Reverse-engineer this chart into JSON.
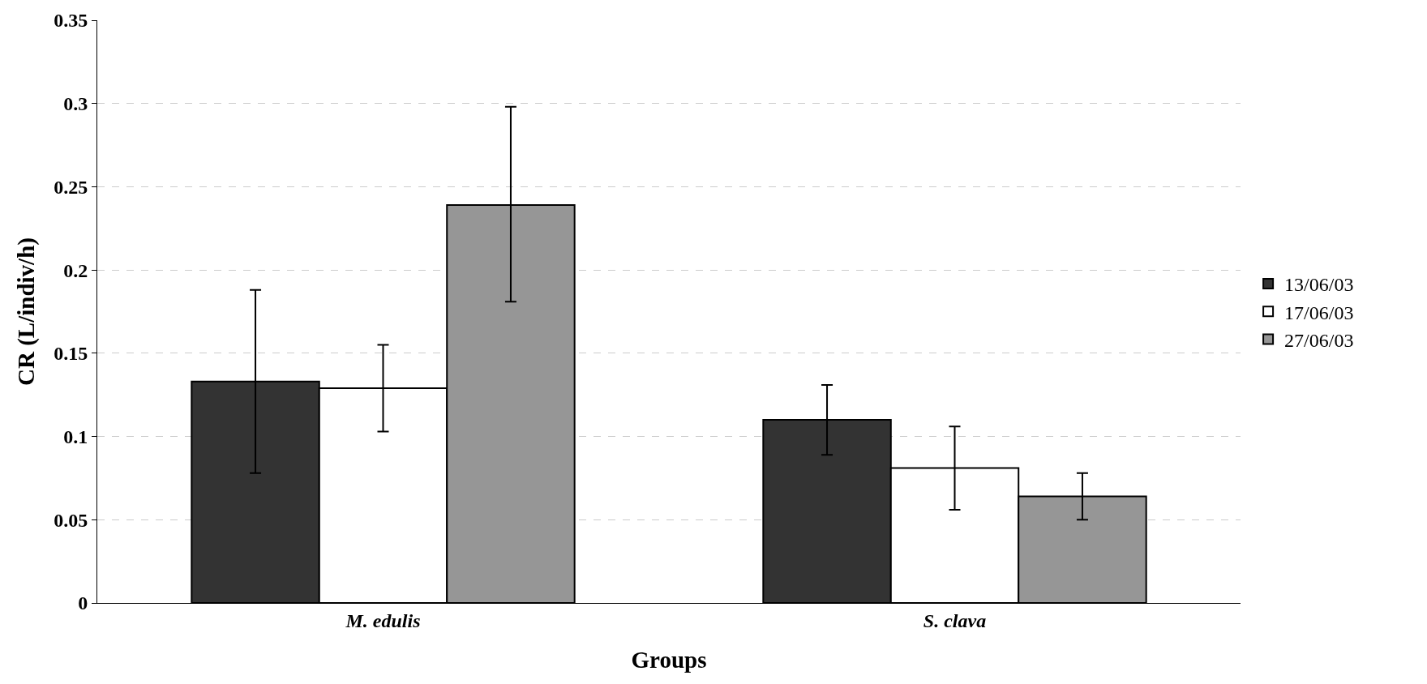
{
  "chart_data": {
    "type": "bar",
    "xlabel": "Groups",
    "ylabel": "CR (L/indiv/h)",
    "categories": [
      "M. edulis",
      "S. clava"
    ],
    "series": [
      {
        "name": "13/06/03",
        "color": "#333333",
        "values": [
          0.133,
          0.11
        ],
        "errors": [
          [
            0.078,
            0.188
          ],
          [
            0.089,
            0.131
          ]
        ]
      },
      {
        "name": "17/06/03",
        "color": "#ffffff",
        "values": [
          0.129,
          0.081
        ],
        "errors": [
          [
            0.103,
            0.155
          ],
          [
            0.056,
            0.106
          ]
        ]
      },
      {
        "name": "27/06/03",
        "color": "#969696",
        "values": [
          0.239,
          0.064
        ],
        "errors": [
          [
            0.181,
            0.298
          ],
          [
            0.05,
            0.078
          ]
        ]
      }
    ],
    "ylim": [
      0,
      0.35
    ],
    "yticks": [
      0,
      0.05,
      0.1,
      0.15,
      0.2,
      0.25,
      0.3,
      0.35
    ],
    "grid": "y",
    "legend": "right"
  }
}
